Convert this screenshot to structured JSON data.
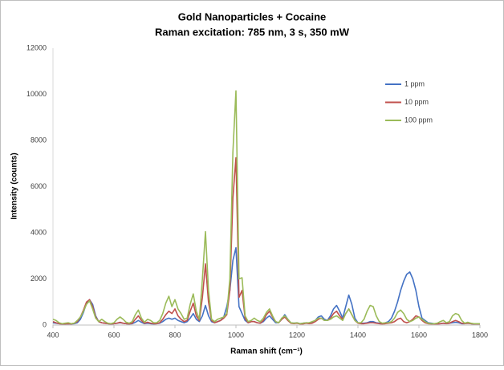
{
  "chart_data": {
    "type": "line",
    "title": "Gold Nanoparticles + Cocaine",
    "subtitle": "Raman excitation: 785 nm, 3 s, 350 mW",
    "x_label": "Raman shift (cm⁻¹)",
    "y_label": "Intensity (counts)",
    "xlim": [
      400,
      1800
    ],
    "xticks": [
      400,
      600,
      800,
      1000,
      1200,
      1400,
      1600,
      1800
    ],
    "ylim": [
      0,
      12000
    ],
    "yticks": [
      0,
      2000,
      4000,
      6000,
      8000,
      10000,
      12000
    ],
    "grid": false,
    "legend": "upper right",
    "x": [
      400,
      410,
      420,
      430,
      440,
      450,
      460,
      470,
      480,
      490,
      500,
      510,
      520,
      530,
      540,
      550,
      560,
      570,
      580,
      590,
      600,
      610,
      620,
      630,
      640,
      650,
      660,
      670,
      680,
      690,
      700,
      710,
      720,
      730,
      740,
      750,
      760,
      770,
      780,
      790,
      800,
      810,
      820,
      830,
      840,
      850,
      860,
      870,
      880,
      890,
      900,
      910,
      920,
      930,
      940,
      950,
      960,
      970,
      980,
      990,
      1000,
      1010,
      1020,
      1030,
      1040,
      1050,
      1060,
      1070,
      1080,
      1090,
      1100,
      1110,
      1120,
      1130,
      1140,
      1150,
      1160,
      1170,
      1180,
      1190,
      1200,
      1210,
      1220,
      1230,
      1240,
      1250,
      1260,
      1270,
      1280,
      1290,
      1300,
      1310,
      1320,
      1330,
      1340,
      1350,
      1360,
      1370,
      1380,
      1390,
      1400,
      1410,
      1420,
      1430,
      1440,
      1450,
      1460,
      1470,
      1480,
      1490,
      1500,
      1510,
      1520,
      1530,
      1540,
      1550,
      1560,
      1570,
      1580,
      1590,
      1600,
      1610,
      1620,
      1630,
      1640,
      1650,
      1660,
      1670,
      1680,
      1690,
      1700,
      1710,
      1720,
      1730,
      1740,
      1750,
      1760,
      1770,
      1780,
      1790,
      1800
    ],
    "series": [
      {
        "name": "1 ppm",
        "color": "#4472c4",
        "values": [
          100,
          80,
          60,
          50,
          50,
          60,
          50,
          60,
          100,
          250,
          550,
          950,
          1100,
          900,
          400,
          150,
          100,
          80,
          60,
          50,
          60,
          80,
          100,
          80,
          60,
          50,
          60,
          120,
          200,
          120,
          60,
          80,
          60,
          50,
          60,
          80,
          150,
          250,
          300,
          250,
          300,
          200,
          150,
          100,
          150,
          300,
          500,
          250,
          150,
          400,
          850,
          400,
          150,
          100,
          150,
          200,
          350,
          800,
          1500,
          2800,
          3350,
          800,
          500,
          200,
          100,
          150,
          150,
          100,
          80,
          150,
          300,
          400,
          250,
          100,
          100,
          250,
          450,
          250,
          100,
          80,
          100,
          60,
          80,
          100,
          80,
          100,
          200,
          350,
          400,
          250,
          200,
          400,
          700,
          850,
          600,
          300,
          800,
          1300,
          900,
          300,
          100,
          80,
          80,
          100,
          150,
          150,
          100,
          80,
          60,
          100,
          150,
          300,
          600,
          1000,
          1500,
          1900,
          2200,
          2300,
          2000,
          1500,
          800,
          300,
          200,
          100,
          80,
          60,
          60,
          60,
          80,
          60,
          80,
          100,
          120,
          100,
          60,
          60,
          80,
          60,
          50,
          60,
          50
        ]
      },
      {
        "name": "10 ppm",
        "color": "#c0504d",
        "values": [
          150,
          100,
          60,
          50,
          50,
          60,
          50,
          80,
          150,
          350,
          650,
          1000,
          1100,
          800,
          350,
          150,
          100,
          80,
          60,
          50,
          60,
          80,
          120,
          80,
          60,
          50,
          80,
          250,
          400,
          200,
          80,
          120,
          80,
          60,
          60,
          100,
          250,
          450,
          600,
          500,
          700,
          400,
          250,
          150,
          200,
          600,
          950,
          400,
          200,
          1200,
          2650,
          1000,
          200,
          100,
          150,
          200,
          300,
          450,
          1500,
          5500,
          7250,
          1200,
          1500,
          300,
          100,
          150,
          150,
          100,
          80,
          200,
          450,
          600,
          350,
          150,
          100,
          250,
          350,
          200,
          80,
          60,
          80,
          50,
          50,
          80,
          60,
          80,
          150,
          250,
          300,
          200,
          200,
          300,
          500,
          600,
          400,
          250,
          500,
          700,
          450,
          200,
          80,
          60,
          60,
          80,
          100,
          100,
          80,
          60,
          50,
          60,
          80,
          100,
          150,
          250,
          300,
          150,
          100,
          150,
          250,
          400,
          350,
          200,
          100,
          60,
          50,
          50,
          50,
          60,
          80,
          60,
          80,
          150,
          200,
          150,
          80,
          60,
          80,
          60,
          50,
          50,
          50
        ]
      },
      {
        "name": "100 ppm",
        "color": "#9bbb59",
        "values": [
          250,
          200,
          100,
          60,
          80,
          100,
          60,
          80,
          200,
          350,
          600,
          900,
          1050,
          700,
          300,
          150,
          250,
          150,
          80,
          60,
          100,
          250,
          350,
          250,
          120,
          80,
          150,
          450,
          650,
          300,
          120,
          250,
          200,
          100,
          100,
          200,
          500,
          950,
          1250,
          800,
          1100,
          700,
          500,
          250,
          300,
          900,
          1350,
          600,
          250,
          2000,
          4050,
          1500,
          250,
          150,
          250,
          300,
          350,
          500,
          2000,
          7500,
          10150,
          2000,
          2050,
          400,
          150,
          200,
          300,
          200,
          150,
          300,
          550,
          700,
          400,
          150,
          100,
          300,
          400,
          250,
          100,
          80,
          100,
          60,
          80,
          100,
          100,
          150,
          200,
          300,
          300,
          200,
          200,
          250,
          350,
          400,
          300,
          200,
          500,
          700,
          450,
          200,
          100,
          100,
          250,
          600,
          850,
          800,
          400,
          150,
          80,
          100,
          100,
          150,
          300,
          550,
          650,
          500,
          250,
          150,
          200,
          300,
          350,
          250,
          150,
          80,
          60,
          60,
          80,
          150,
          200,
          100,
          150,
          400,
          500,
          450,
          200,
          80,
          120,
          80,
          60,
          60,
          60
        ]
      }
    ]
  }
}
